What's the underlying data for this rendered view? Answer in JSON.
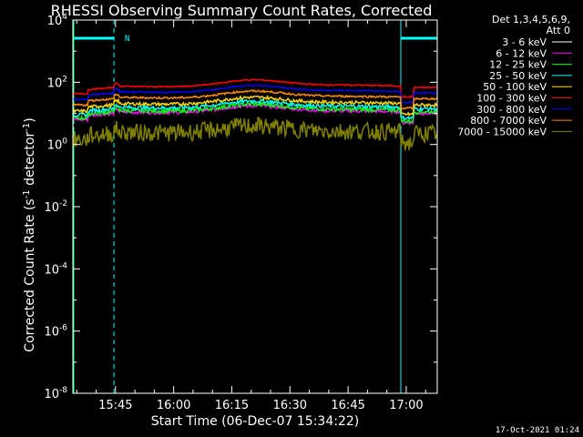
{
  "chart_data": {
    "type": "line",
    "title": "RHESSI Observing Summary Count Rates, Corrected",
    "xlabel": "Start Time (06-Dec-07 15:34:22)",
    "ylabel": "Corrected Count Rate (s⁻¹ detector⁻¹)",
    "ylabel_parts": {
      "main": "Corrected Count Rate (s",
      "exp1": "-1",
      "mid": " detector",
      "exp2": "-1",
      "end": ")"
    },
    "yscale": "log",
    "ylim_exp": [
      -8,
      4
    ],
    "ytick_exponents": [
      -8,
      -6,
      -4,
      -2,
      0,
      2,
      4
    ],
    "ytick_base": "10",
    "xlim": [
      0,
      94
    ],
    "xtick_minutes": [
      11,
      26,
      41,
      56,
      71,
      86
    ],
    "xtick_labels": [
      "15:45",
      "16:00",
      "16:15",
      "16:30",
      "16:45",
      "17:00"
    ],
    "legend_header": [
      "Det 1,3,4,5,6,9,",
      "Att 0"
    ],
    "legend_placement": "right",
    "series": [
      {
        "name": "3 - 6 keV",
        "color": "#000000"
      },
      {
        "name": "6 - 12 keV",
        "color": "#ff00ff"
      },
      {
        "name": "12 - 25 keV",
        "color": "#00ff00"
      },
      {
        "name": "25 - 50 keV",
        "color": "#00ffff"
      },
      {
        "name": "50 - 100 keV",
        "color": "#ffd700"
      },
      {
        "name": "100 - 300 keV",
        "color": "#ff0000"
      },
      {
        "name": "300 - 800 keV",
        "color": "#0000ff"
      },
      {
        "name": "800 - 7000 keV",
        "color": "#ff8c00"
      },
      {
        "name": "7000 - 15000 keV",
        "color": "#808000"
      }
    ],
    "annotations": [
      {
        "text": "N",
        "x_minute": 11.5
      }
    ],
    "night_intervals_minutes": [
      [
        0,
        10.6
      ],
      [
        84.6,
        94
      ]
    ],
    "attenuator_markers_minutes": [
      10.6,
      84.6,
      94
    ]
  },
  "footer": {
    "timestamp": "17-Oct-2021 01:24"
  }
}
